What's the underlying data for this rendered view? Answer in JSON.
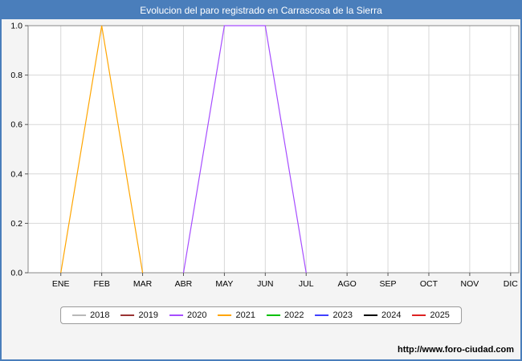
{
  "header": {
    "title": "Evolucion del paro registrado en Carrascosa de la Sierra",
    "bg_color": "#4a7ebb",
    "text_color": "#ffffff"
  },
  "footer": {
    "watermark": "http://www.foro-ciudad.com"
  },
  "chart_data": {
    "type": "line",
    "title": "Evolucion del paro registrado en Carrascosa de la Sierra",
    "categories": [
      "ENE",
      "FEB",
      "MAR",
      "ABR",
      "MAY",
      "JUN",
      "JUL",
      "AGO",
      "SEP",
      "OCT",
      "NOV",
      "DIC"
    ],
    "ylim": [
      0.0,
      1.0
    ],
    "yticks": [
      "0.0",
      "0.2",
      "0.4",
      "0.6",
      "0.8",
      "1.0"
    ],
    "grid": true,
    "legend_position": "bottom",
    "series": [
      {
        "name": "2018",
        "color": "#b8b8b8",
        "values": [
          null,
          null,
          null,
          null,
          null,
          null,
          null,
          null,
          null,
          null,
          null,
          null
        ]
      },
      {
        "name": "2019",
        "color": "#993333",
        "values": [
          null,
          null,
          null,
          null,
          null,
          null,
          null,
          null,
          null,
          null,
          null,
          null
        ]
      },
      {
        "name": "2020",
        "color": "#a64dff",
        "values": [
          null,
          null,
          null,
          0.0,
          1.0,
          1.0,
          0.0,
          null,
          null,
          null,
          null,
          null
        ]
      },
      {
        "name": "2021",
        "color": "#ffa500",
        "values": [
          0.0,
          1.0,
          0.0,
          null,
          null,
          null,
          null,
          null,
          null,
          null,
          null,
          null
        ]
      },
      {
        "name": "2022",
        "color": "#00c000",
        "values": [
          null,
          null,
          null,
          null,
          null,
          null,
          null,
          null,
          null,
          null,
          null,
          null
        ]
      },
      {
        "name": "2023",
        "color": "#4040ff",
        "values": [
          null,
          null,
          null,
          null,
          null,
          null,
          null,
          null,
          null,
          null,
          null,
          null
        ]
      },
      {
        "name": "2024",
        "color": "#000000",
        "values": [
          null,
          null,
          null,
          null,
          null,
          null,
          null,
          null,
          null,
          null,
          null,
          null
        ]
      },
      {
        "name": "2025",
        "color": "#dd2222",
        "values": [
          null,
          null,
          null,
          null,
          null,
          null,
          null,
          null,
          null,
          null,
          null,
          null
        ]
      }
    ]
  }
}
